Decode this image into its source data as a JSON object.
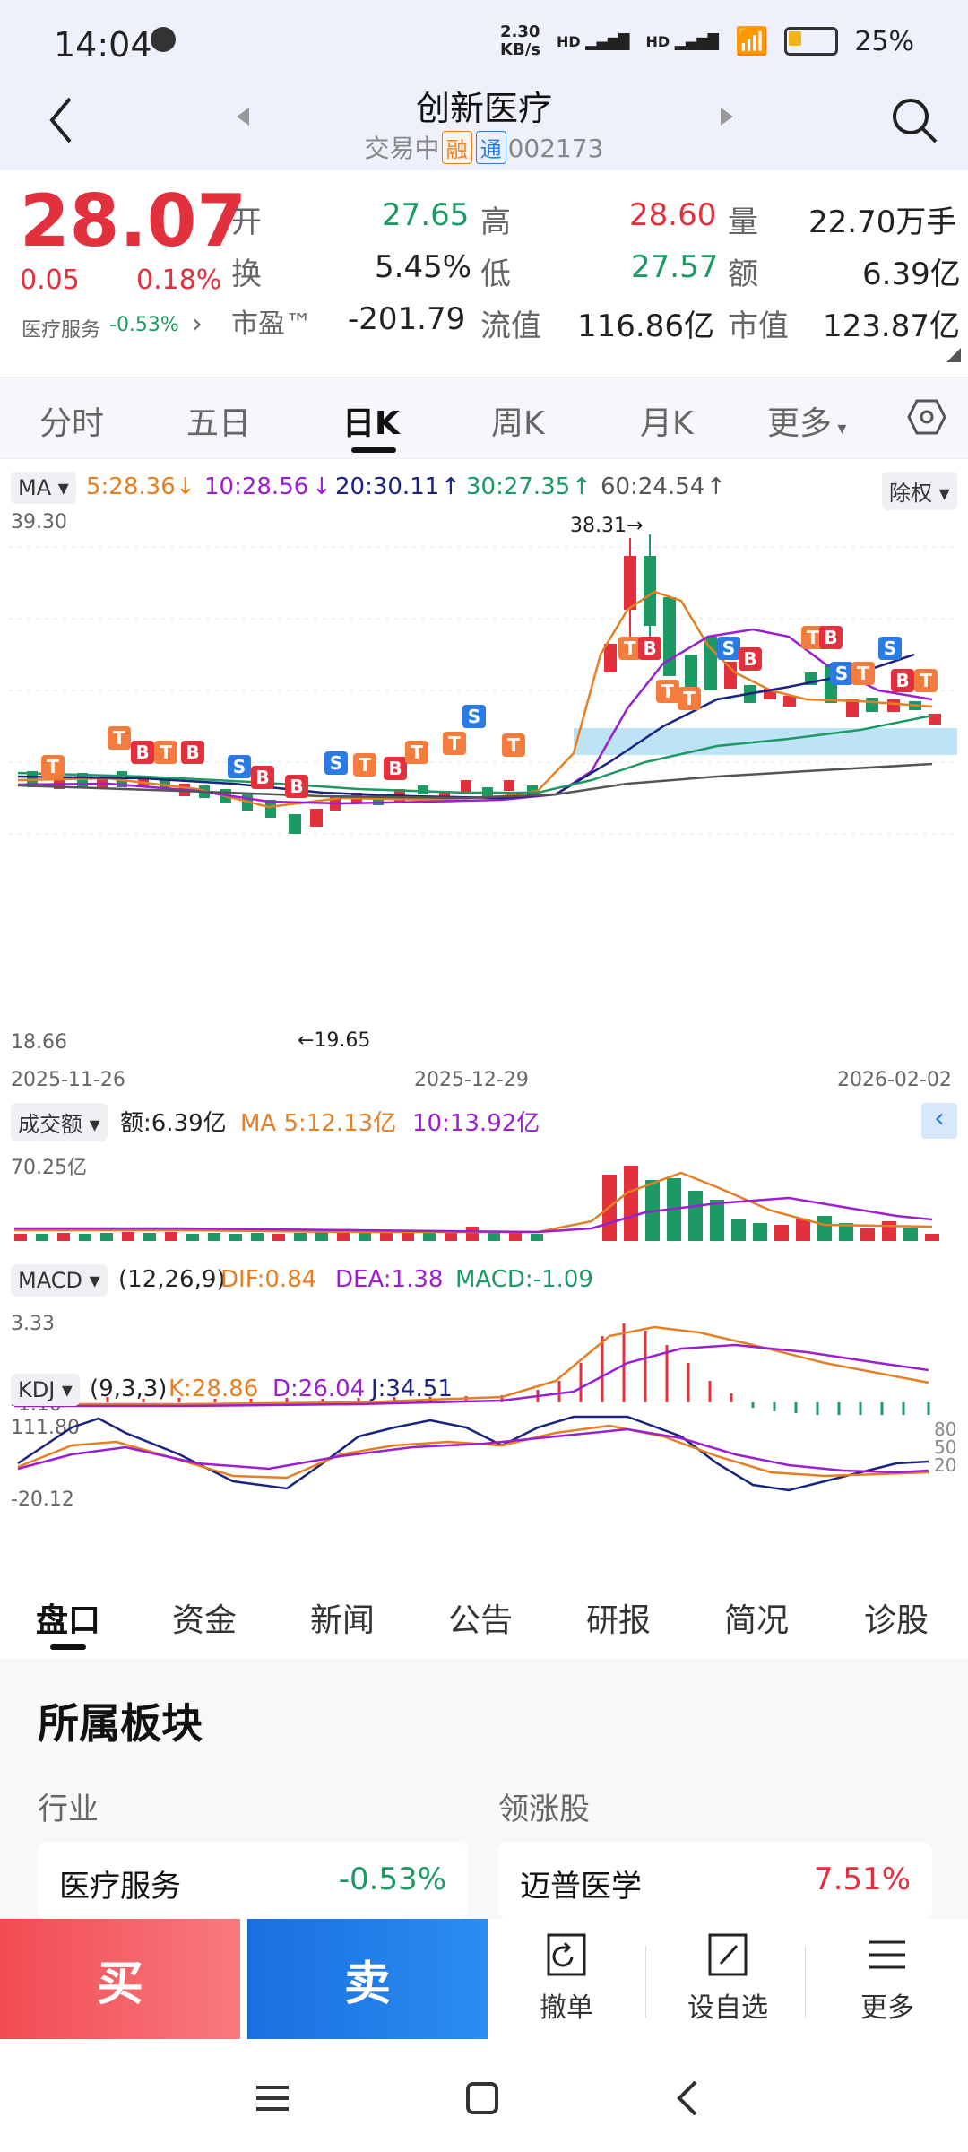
{
  "status_bar": {
    "time": "14:04",
    "net_speed_top": "2.30",
    "net_speed_bottom": "KB/s",
    "signal1": "HD",
    "signal2": "HD",
    "battery": "25%"
  },
  "header": {
    "stock_name": "创新医疗",
    "status": "交易中",
    "tag_rong": "融",
    "tag_tong": "通",
    "code": "002173"
  },
  "quote": {
    "price": "28.07",
    "change": "0.05",
    "change_pct": "0.18%",
    "sector_name": "医疗服务",
    "sector_change": "-0.53%",
    "open_label": "开",
    "open": "27.65",
    "high_label": "高",
    "high": "28.60",
    "volume_label": "量",
    "volume": "22.70万手",
    "turnover_label": "换",
    "turnover": "5.45%",
    "low_label": "低",
    "low": "27.57",
    "amount_label": "额",
    "amount": "6.39亿",
    "pe_label": "市盈™",
    "pe": "-201.79",
    "float_label": "流值",
    "float_value": "116.86亿",
    "mcap_label": "市值",
    "mcap": "123.87亿"
  },
  "tabs": [
    "分时",
    "五日",
    "日K",
    "周K",
    "月K",
    "更多"
  ],
  "active_tab": "日K",
  "indicator_bar": {
    "ma_label": "MA",
    "ma5": "5:28.36",
    "ma10": "10:28.56",
    "ma20": "20:30.11",
    "ma30": "30:27.35",
    "ma60": "60:24.54",
    "adjust": "除权",
    "ma5_color": "#e67e22",
    "ma10_color": "#9b1fd1",
    "ma20_color": "#1a237e",
    "ma30_color": "#1d9a63",
    "ma60_color": "#555555"
  },
  "kline": {
    "y_top": "39.30",
    "y_bottom": "18.66",
    "high_marker": "38.31→",
    "low_marker": "←19.65",
    "date_start": "2025-11-26",
    "date_mid": "2025-12-29",
    "date_end": "2026-02-02"
  },
  "volume_panel": {
    "label": "成交额",
    "amount": "额:6.39亿",
    "ma5": "MA 5:12.13亿",
    "ma10": "10:13.92亿",
    "y_top": "70.25亿"
  },
  "macd_panel": {
    "label": "MACD",
    "params": "(12,26,9)",
    "dif": "DIF:0.84",
    "dea": "DEA:1.38",
    "macd": "MACD:-1.09",
    "y_top": "3.33",
    "y_bottom": "-1.10"
  },
  "kdj_panel": {
    "label": "KDJ",
    "params": "(9,3,3)",
    "k": "K:28.86",
    "d": "D:26.04",
    "j": "J:34.51",
    "y_top": "111.80",
    "y_bottom": "-20.12",
    "lvl80": "80",
    "lvl50": "50",
    "lvl20": "20"
  },
  "bottom_tabs": [
    "盘口",
    "资金",
    "新闻",
    "公告",
    "研报",
    "简况",
    "诊股"
  ],
  "sector_section": {
    "title": "所属板块",
    "industry_label": "行业",
    "leader_label": "领涨股",
    "industry_name": "医疗服务",
    "industry_change": "-0.53%",
    "leader_name": "迈普医学",
    "leader_change": "7.51%"
  },
  "actions": {
    "buy": "买",
    "sell": "卖",
    "cancel": "撤单",
    "watchlist": "设自选",
    "more": "更多"
  }
}
